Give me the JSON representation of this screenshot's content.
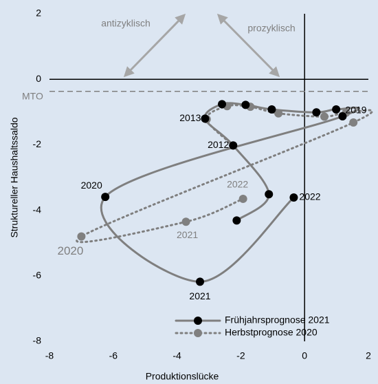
{
  "chart_data": {
    "type": "line",
    "x_label": "Produktionslücke",
    "y_label": "Struktureller Haushaltssaldo",
    "xlim": [
      -8,
      2
    ],
    "xticks": [
      -8,
      -6,
      -4,
      -2,
      0,
      2
    ],
    "ylim": [
      -8,
      2
    ],
    "yticks": [
      -8,
      -6,
      -4,
      -2,
      0,
      2
    ],
    "annotations": [
      "antizyklisch",
      "prozyklisch"
    ],
    "mto": {
      "label": "MTO",
      "value": -0.37
    },
    "series": [
      {
        "name": "Frühjahrsprognose 2021",
        "color": "#7f7f7f",
        "marker_color": "#000000",
        "style": "solid",
        "x": [
          -2.13,
          -1.12,
          -2.24,
          -3.12,
          -2.59,
          -1.85,
          -1.03,
          0.37,
          0.99,
          1.19,
          -6.25,
          -3.28,
          -0.34
        ],
        "values": [
          -4.31,
          -3.51,
          -2.02,
          -1.2,
          -0.76,
          -0.78,
          -0.92,
          -1.01,
          -0.92,
          -1.13,
          -3.59,
          -6.18,
          -3.61
        ],
        "point_labels": [
          null,
          null,
          "2012",
          "2013",
          null,
          null,
          null,
          null,
          null,
          "2019",
          "2020",
          "2021",
          "2022"
        ]
      },
      {
        "name": "Herbstprognose 2020",
        "color": "#7f7f7f",
        "marker_color": "#808080",
        "style": "dotted",
        "x": [
          -2.24,
          -3.07,
          -2.43,
          -1.7,
          -0.82,
          0.62,
          1.3,
          1.53,
          -7.0,
          -3.72,
          -1.93
        ],
        "values": [
          -2.02,
          -1.22,
          -0.82,
          -0.84,
          -1.04,
          -1.14,
          -1.02,
          -1.32,
          -4.8,
          -4.35,
          -3.65
        ],
        "point_labels": [
          null,
          null,
          null,
          null,
          null,
          null,
          null,
          null,
          "2020",
          "2021",
          "2022"
        ]
      }
    ]
  }
}
